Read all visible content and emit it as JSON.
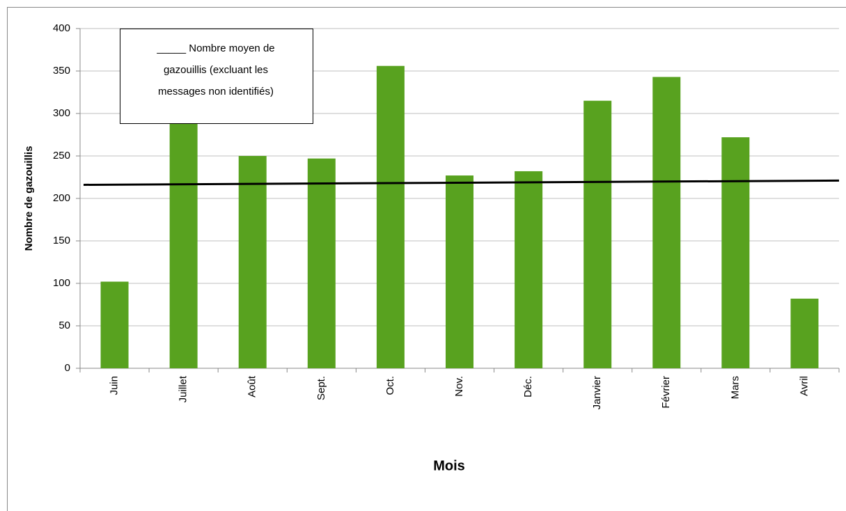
{
  "chart_data": {
    "type": "bar",
    "categories": [
      "Juin",
      "Juillet",
      "Août",
      "Sept.",
      "Oct.",
      "Nov.",
      "Déc.",
      "Janvier",
      "Février",
      "Mars",
      "Avril"
    ],
    "values": [
      102,
      290,
      250,
      247,
      356,
      227,
      232,
      315,
      343,
      272,
      82
    ],
    "color": "#58a21f",
    "line": {
      "name": [
        "_____ Nombre moyen de",
        "gazouillis (excluant les",
        "messages non identifiés)"
      ],
      "values": [
        216,
        221
      ],
      "color": "#000000"
    },
    "ylabel": "Nombre de gazouillis",
    "xlabel": "Mois",
    "ylim": [
      0,
      400
    ],
    "yticks": [
      0,
      50,
      100,
      150,
      200,
      250,
      300,
      350,
      400
    ],
    "grid": true
  }
}
